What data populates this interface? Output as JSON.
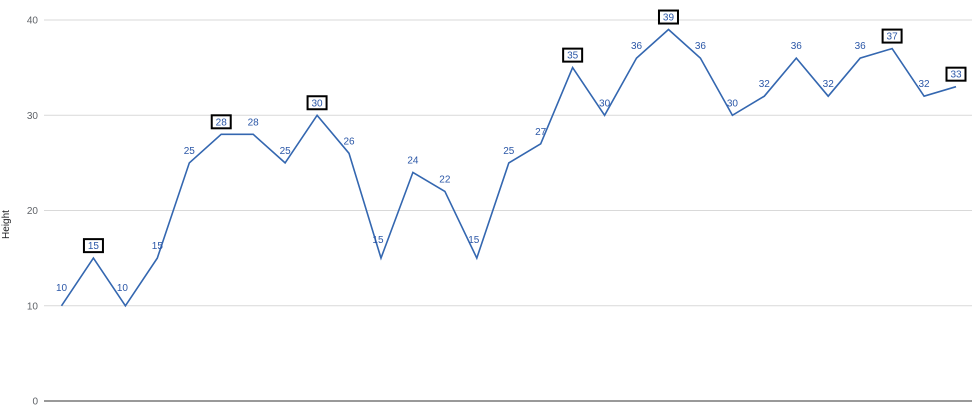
{
  "chart_data": {
    "type": "line",
    "ylabel": "Height",
    "xlabel": "",
    "ylim": [
      0,
      40
    ],
    "yticks": [
      0,
      10,
      20,
      30,
      40
    ],
    "grid": true,
    "legend": "none",
    "colors": {
      "line": "#3467b0",
      "label": "#2b57a7",
      "grid": "#d9d9d9",
      "axis": "#333333",
      "box": "#000000"
    },
    "series": [
      {
        "values": [
          10,
          15,
          10,
          15,
          25,
          28,
          28,
          25,
          30,
          26,
          15,
          24,
          22,
          15,
          25,
          27,
          35,
          30,
          36,
          39,
          36,
          30,
          32,
          36,
          32,
          36,
          37,
          32,
          33
        ],
        "highlighted": [
          false,
          true,
          false,
          false,
          false,
          true,
          false,
          false,
          true,
          false,
          false,
          false,
          false,
          false,
          false,
          false,
          true,
          false,
          false,
          true,
          false,
          false,
          false,
          false,
          false,
          false,
          true,
          false,
          true
        ]
      }
    ]
  }
}
